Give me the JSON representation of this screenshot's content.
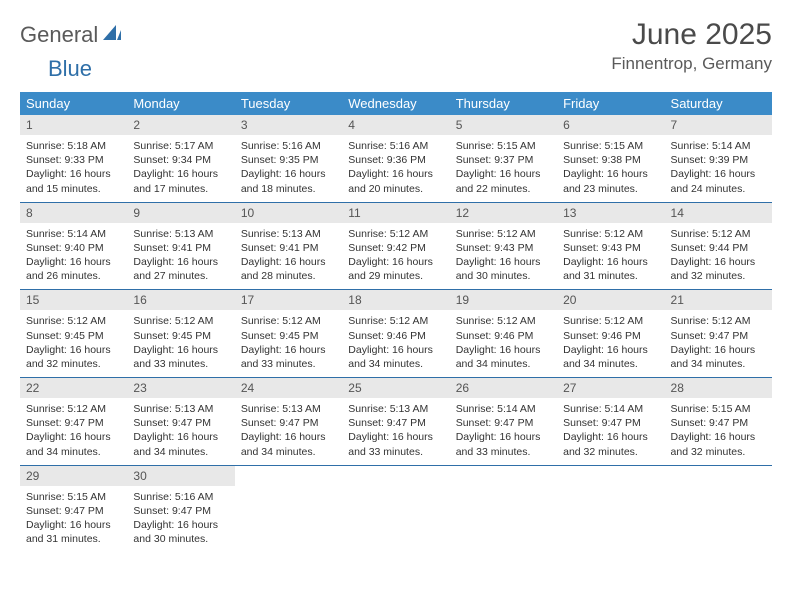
{
  "logo": {
    "part1": "General",
    "part2": "Blue"
  },
  "title": "June 2025",
  "location": "Finnentrop, Germany",
  "colors": {
    "header_bg": "#3b8bc8",
    "header_text": "#ffffff",
    "daynum_bg": "#e8e8e8",
    "border": "#2f6fa8",
    "logo_gray": "#5a5a5a",
    "logo_blue": "#2f6fa8"
  },
  "weekdays": [
    "Sunday",
    "Monday",
    "Tuesday",
    "Wednesday",
    "Thursday",
    "Friday",
    "Saturday"
  ],
  "weeks": [
    [
      {
        "n": "1",
        "sr": "5:18 AM",
        "ss": "9:33 PM",
        "dh": "16",
        "dm": "15"
      },
      {
        "n": "2",
        "sr": "5:17 AM",
        "ss": "9:34 PM",
        "dh": "16",
        "dm": "17"
      },
      {
        "n": "3",
        "sr": "5:16 AM",
        "ss": "9:35 PM",
        "dh": "16",
        "dm": "18"
      },
      {
        "n": "4",
        "sr": "5:16 AM",
        "ss": "9:36 PM",
        "dh": "16",
        "dm": "20"
      },
      {
        "n": "5",
        "sr": "5:15 AM",
        "ss": "9:37 PM",
        "dh": "16",
        "dm": "22"
      },
      {
        "n": "6",
        "sr": "5:15 AM",
        "ss": "9:38 PM",
        "dh": "16",
        "dm": "23"
      },
      {
        "n": "7",
        "sr": "5:14 AM",
        "ss": "9:39 PM",
        "dh": "16",
        "dm": "24"
      }
    ],
    [
      {
        "n": "8",
        "sr": "5:14 AM",
        "ss": "9:40 PM",
        "dh": "16",
        "dm": "26"
      },
      {
        "n": "9",
        "sr": "5:13 AM",
        "ss": "9:41 PM",
        "dh": "16",
        "dm": "27"
      },
      {
        "n": "10",
        "sr": "5:13 AM",
        "ss": "9:41 PM",
        "dh": "16",
        "dm": "28"
      },
      {
        "n": "11",
        "sr": "5:12 AM",
        "ss": "9:42 PM",
        "dh": "16",
        "dm": "29"
      },
      {
        "n": "12",
        "sr": "5:12 AM",
        "ss": "9:43 PM",
        "dh": "16",
        "dm": "30"
      },
      {
        "n": "13",
        "sr": "5:12 AM",
        "ss": "9:43 PM",
        "dh": "16",
        "dm": "31"
      },
      {
        "n": "14",
        "sr": "5:12 AM",
        "ss": "9:44 PM",
        "dh": "16",
        "dm": "32"
      }
    ],
    [
      {
        "n": "15",
        "sr": "5:12 AM",
        "ss": "9:45 PM",
        "dh": "16",
        "dm": "32"
      },
      {
        "n": "16",
        "sr": "5:12 AM",
        "ss": "9:45 PM",
        "dh": "16",
        "dm": "33"
      },
      {
        "n": "17",
        "sr": "5:12 AM",
        "ss": "9:45 PM",
        "dh": "16",
        "dm": "33"
      },
      {
        "n": "18",
        "sr": "5:12 AM",
        "ss": "9:46 PM",
        "dh": "16",
        "dm": "34"
      },
      {
        "n": "19",
        "sr": "5:12 AM",
        "ss": "9:46 PM",
        "dh": "16",
        "dm": "34"
      },
      {
        "n": "20",
        "sr": "5:12 AM",
        "ss": "9:46 PM",
        "dh": "16",
        "dm": "34"
      },
      {
        "n": "21",
        "sr": "5:12 AM",
        "ss": "9:47 PM",
        "dh": "16",
        "dm": "34"
      }
    ],
    [
      {
        "n": "22",
        "sr": "5:12 AM",
        "ss": "9:47 PM",
        "dh": "16",
        "dm": "34"
      },
      {
        "n": "23",
        "sr": "5:13 AM",
        "ss": "9:47 PM",
        "dh": "16",
        "dm": "34"
      },
      {
        "n": "24",
        "sr": "5:13 AM",
        "ss": "9:47 PM",
        "dh": "16",
        "dm": "34"
      },
      {
        "n": "25",
        "sr": "5:13 AM",
        "ss": "9:47 PM",
        "dh": "16",
        "dm": "33"
      },
      {
        "n": "26",
        "sr": "5:14 AM",
        "ss": "9:47 PM",
        "dh": "16",
        "dm": "33"
      },
      {
        "n": "27",
        "sr": "5:14 AM",
        "ss": "9:47 PM",
        "dh": "16",
        "dm": "32"
      },
      {
        "n": "28",
        "sr": "5:15 AM",
        "ss": "9:47 PM",
        "dh": "16",
        "dm": "32"
      }
    ],
    [
      {
        "n": "29",
        "sr": "5:15 AM",
        "ss": "9:47 PM",
        "dh": "16",
        "dm": "31"
      },
      {
        "n": "30",
        "sr": "5:16 AM",
        "ss": "9:47 PM",
        "dh": "16",
        "dm": "30"
      },
      null,
      null,
      null,
      null,
      null
    ]
  ],
  "labels": {
    "sunrise": "Sunrise:",
    "sunset": "Sunset:",
    "daylight_prefix": "Daylight:",
    "hours_word": "hours",
    "and_word": "and",
    "minutes_word": "minutes."
  }
}
